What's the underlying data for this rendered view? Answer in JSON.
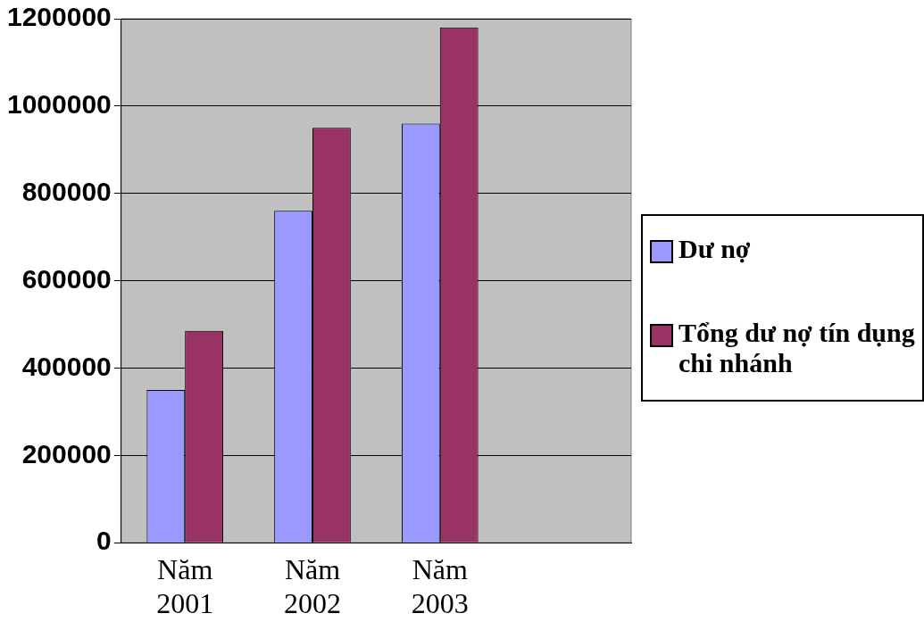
{
  "chart_data": {
    "type": "bar",
    "categories": [
      "Năm 2001",
      "Năm 2002",
      "Năm 2003",
      null
    ],
    "series": [
      {
        "name": "Dư nợ",
        "color": "#9999ff",
        "values": [
          350000,
          760000,
          960000,
          null
        ]
      },
      {
        "name": "Tổng dư nợ tín dụng chi nhánh",
        "color": "#993366",
        "values": [
          485000,
          950000,
          1180000,
          null
        ]
      }
    ],
    "ylim": [
      0,
      1200000
    ],
    "yticks": [
      0,
      200000,
      400000,
      600000,
      800000,
      1000000,
      1200000
    ],
    "grid": "y",
    "legend": "right"
  }
}
